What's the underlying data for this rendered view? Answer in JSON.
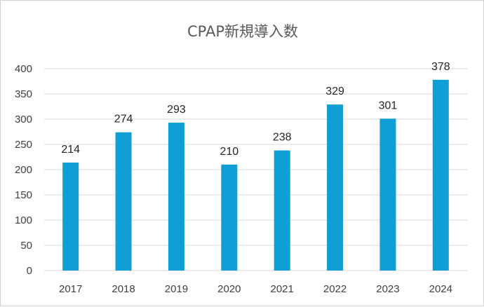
{
  "chart_data": {
    "type": "bar",
    "title": "CPAP新規導入数",
    "xlabel": "",
    "ylabel": "",
    "categories": [
      "2017",
      "2018",
      "2019",
      "2020",
      "2021",
      "2022",
      "2023",
      "2024"
    ],
    "values": [
      214,
      274,
      293,
      210,
      238,
      329,
      301,
      378
    ],
    "ylim": [
      0,
      400
    ],
    "yticks": [
      0,
      50,
      100,
      150,
      200,
      250,
      300,
      350,
      400
    ],
    "grid": true,
    "legend": "none",
    "data_labels": true,
    "bar_color": "#0f9ed5"
  }
}
